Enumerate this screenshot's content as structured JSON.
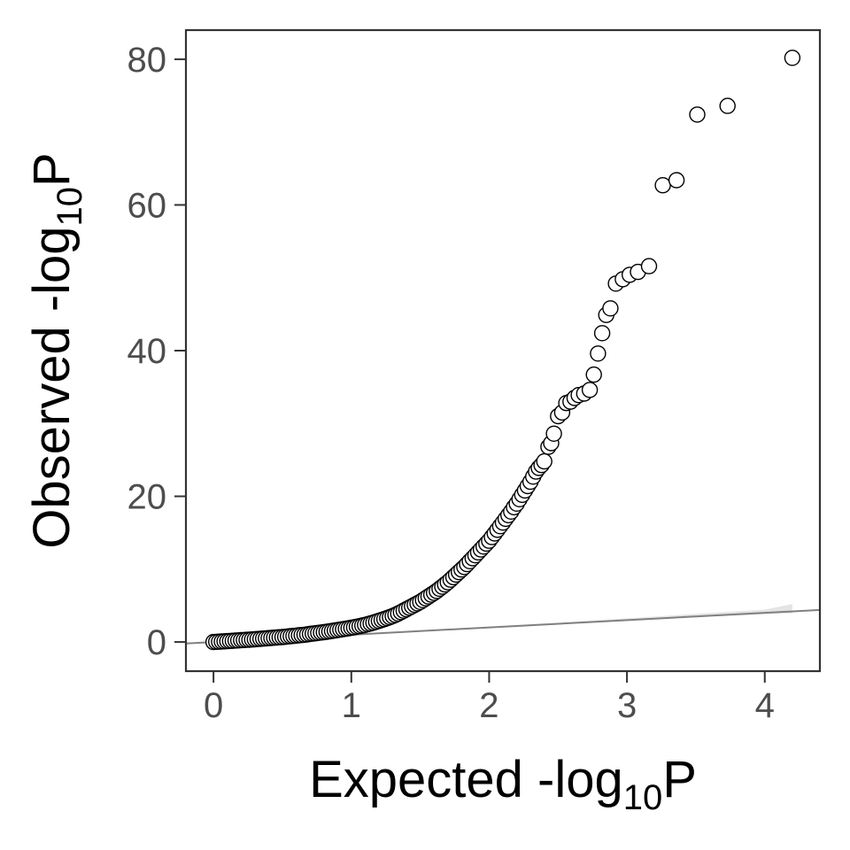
{
  "chart_data": {
    "type": "scatter",
    "title": "",
    "xlabel": {
      "prefix": "Expected -log",
      "subscript": "10",
      "suffix": "P"
    },
    "ylabel": {
      "prefix": "Observed -log",
      "subscript": "10",
      "suffix": "P"
    },
    "xlim": [
      -0.2,
      4.4
    ],
    "ylim": [
      -4,
      84
    ],
    "xticks": [
      0,
      1,
      2,
      3,
      4
    ],
    "yticks": [
      0,
      20,
      40,
      60,
      80
    ],
    "grid": false,
    "legend": "none",
    "reference_line": {
      "x": [
        -0.2,
        4.4
      ],
      "y": [
        -0.2,
        4.4
      ],
      "color": "#808080"
    },
    "confidence_band": {
      "x": [
        1.0,
        1.5,
        2.0,
        2.5,
        3.0,
        3.5,
        4.0,
        4.2
      ],
      "lower": [
        1.0,
        1.5,
        2.0,
        2.5,
        3.0,
        3.4,
        3.8,
        3.95
      ],
      "upper": [
        1.02,
        1.55,
        2.1,
        2.65,
        3.25,
        3.85,
        4.45,
        5.2
      ],
      "color": "#d9d9d9"
    },
    "points": [
      [
        0.0,
        0.0
      ],
      [
        0.02,
        0.02
      ],
      [
        0.04,
        0.05
      ],
      [
        0.06,
        0.07
      ],
      [
        0.08,
        0.1
      ],
      [
        0.1,
        0.12
      ],
      [
        0.12,
        0.15
      ],
      [
        0.14,
        0.17
      ],
      [
        0.16,
        0.2
      ],
      [
        0.18,
        0.22
      ],
      [
        0.2,
        0.25
      ],
      [
        0.22,
        0.27
      ],
      [
        0.24,
        0.3
      ],
      [
        0.26,
        0.32
      ],
      [
        0.28,
        0.35
      ],
      [
        0.3,
        0.38
      ],
      [
        0.32,
        0.41
      ],
      [
        0.34,
        0.44
      ],
      [
        0.36,
        0.47
      ],
      [
        0.38,
        0.5
      ],
      [
        0.4,
        0.53
      ],
      [
        0.42,
        0.56
      ],
      [
        0.44,
        0.59
      ],
      [
        0.46,
        0.62
      ],
      [
        0.48,
        0.65
      ],
      [
        0.5,
        0.68
      ],
      [
        0.52,
        0.72
      ],
      [
        0.54,
        0.76
      ],
      [
        0.56,
        0.8
      ],
      [
        0.58,
        0.84
      ],
      [
        0.6,
        0.88
      ],
      [
        0.62,
        0.92
      ],
      [
        0.64,
        0.96
      ],
      [
        0.66,
        1.0
      ],
      [
        0.68,
        1.05
      ],
      [
        0.7,
        1.1
      ],
      [
        0.72,
        1.15
      ],
      [
        0.74,
        1.2
      ],
      [
        0.76,
        1.25
      ],
      [
        0.78,
        1.3
      ],
      [
        0.8,
        1.35
      ],
      [
        0.82,
        1.4
      ],
      [
        0.84,
        1.46
      ],
      [
        0.86,
        1.52
      ],
      [
        0.88,
        1.58
      ],
      [
        0.9,
        1.64
      ],
      [
        0.92,
        1.7
      ],
      [
        0.94,
        1.76
      ],
      [
        0.96,
        1.82
      ],
      [
        0.98,
        1.88
      ],
      [
        1.0,
        1.95
      ],
      [
        1.02,
        2.02
      ],
      [
        1.04,
        2.1
      ],
      [
        1.06,
        2.18
      ],
      [
        1.08,
        2.26
      ],
      [
        1.1,
        2.35
      ],
      [
        1.12,
        2.45
      ],
      [
        1.14,
        2.55
      ],
      [
        1.16,
        2.66
      ],
      [
        1.18,
        2.78
      ],
      [
        1.2,
        2.9
      ],
      [
        1.22,
        3.02
      ],
      [
        1.24,
        3.15
      ],
      [
        1.26,
        3.28
      ],
      [
        1.28,
        3.42
      ],
      [
        1.3,
        3.56
      ],
      [
        1.32,
        3.72
      ],
      [
        1.34,
        3.9
      ],
      [
        1.36,
        4.1
      ],
      [
        1.38,
        4.3
      ],
      [
        1.4,
        4.5
      ],
      [
        1.42,
        4.7
      ],
      [
        1.44,
        4.9
      ],
      [
        1.46,
        5.1
      ],
      [
        1.48,
        5.3
      ],
      [
        1.5,
        5.5
      ],
      [
        1.52,
        5.75
      ],
      [
        1.54,
        6.0
      ],
      [
        1.56,
        6.25
      ],
      [
        1.58,
        6.5
      ],
      [
        1.6,
        6.75
      ],
      [
        1.62,
        7.0
      ],
      [
        1.64,
        7.3
      ],
      [
        1.66,
        7.6
      ],
      [
        1.68,
        7.9
      ],
      [
        1.7,
        8.2
      ],
      [
        1.72,
        8.55
      ],
      [
        1.74,
        8.9
      ],
      [
        1.76,
        9.25
      ],
      [
        1.78,
        9.6
      ],
      [
        1.8,
        9.95
      ],
      [
        1.82,
        10.3
      ],
      [
        1.84,
        10.7
      ],
      [
        1.86,
        11.1
      ],
      [
        1.88,
        11.5
      ],
      [
        1.9,
        11.9
      ],
      [
        1.92,
        12.3
      ],
      [
        1.94,
        12.7
      ],
      [
        1.96,
        13.1
      ],
      [
        1.98,
        13.5
      ],
      [
        2.0,
        13.9
      ],
      [
        2.02,
        14.4
      ],
      [
        2.04,
        14.9
      ],
      [
        2.06,
        15.4
      ],
      [
        2.08,
        15.9
      ],
      [
        2.1,
        16.4
      ],
      [
        2.12,
        16.9
      ],
      [
        2.14,
        17.4
      ],
      [
        2.16,
        17.9
      ],
      [
        2.18,
        18.5
      ],
      [
        2.2,
        19.0
      ],
      [
        2.22,
        19.6
      ],
      [
        2.24,
        20.2
      ],
      [
        2.26,
        20.8
      ],
      [
        2.28,
        21.4
      ],
      [
        2.3,
        22.0
      ],
      [
        2.32,
        22.7
      ],
      [
        2.34,
        23.4
      ],
      [
        2.36,
        23.9
      ],
      [
        2.38,
        24.3
      ],
      [
        2.4,
        24.8
      ],
      [
        2.43,
        26.8
      ],
      [
        2.45,
        27.3
      ],
      [
        2.47,
        28.6
      ],
      [
        2.5,
        31.0
      ],
      [
        2.53,
        31.5
      ],
      [
        2.56,
        32.8
      ],
      [
        2.59,
        33.0
      ],
      [
        2.62,
        33.5
      ],
      [
        2.65,
        33.9
      ],
      [
        2.69,
        34.1
      ],
      [
        2.73,
        34.6
      ],
      [
        2.76,
        36.7
      ],
      [
        2.79,
        39.6
      ],
      [
        2.82,
        42.4
      ],
      [
        2.85,
        44.9
      ],
      [
        2.88,
        45.8
      ],
      [
        2.92,
        49.2
      ],
      [
        2.97,
        49.8
      ],
      [
        3.02,
        50.4
      ],
      [
        3.08,
        50.8
      ],
      [
        3.16,
        51.6
      ],
      [
        3.26,
        62.7
      ],
      [
        3.36,
        63.4
      ],
      [
        3.51,
        72.4
      ],
      [
        3.73,
        73.6
      ],
      [
        4.2,
        80.2
      ]
    ]
  }
}
